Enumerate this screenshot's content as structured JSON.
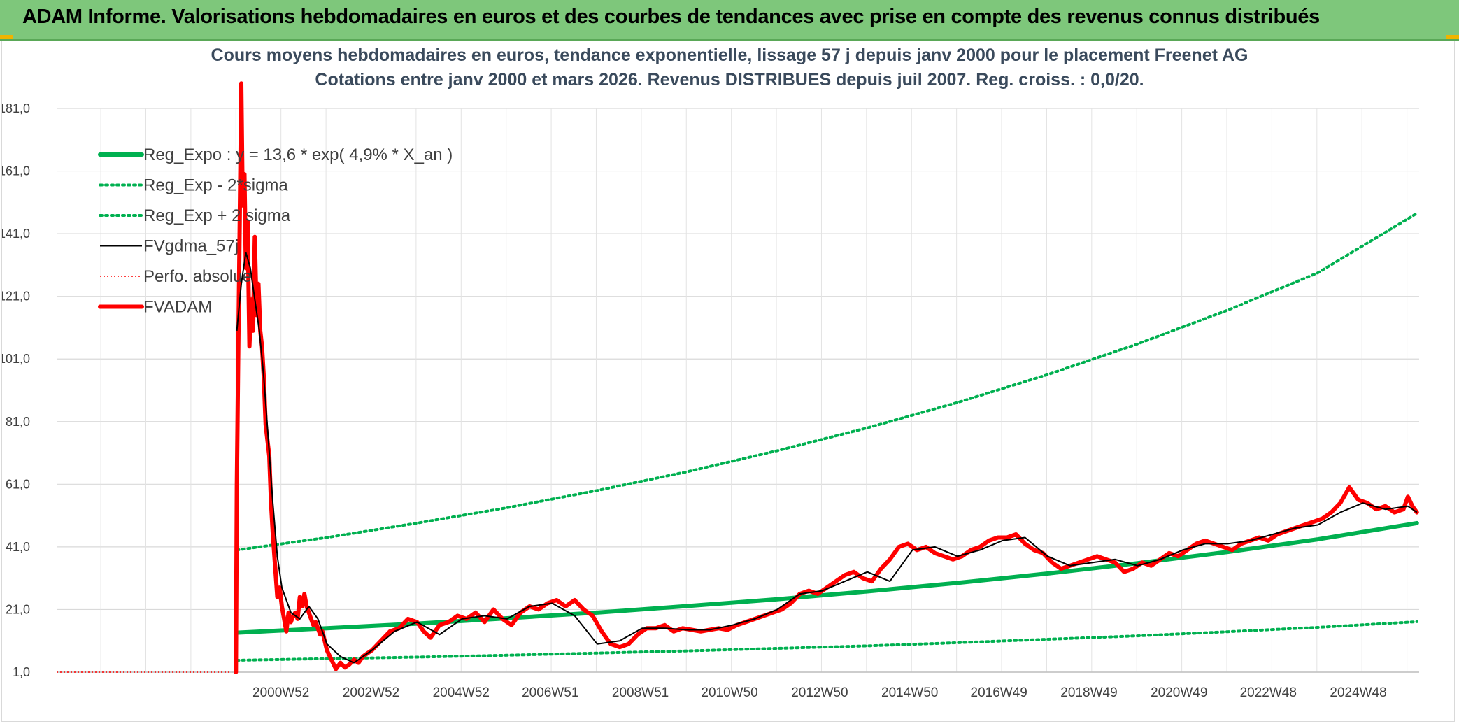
{
  "banner": {
    "title": "ADAM Informe. Valorisations hebdomadaires en euros et des courbes de tendances avec prise en compte des revenus connus distribués"
  },
  "colors": {
    "banner_bg": "#7ec77b",
    "green": "#00b050",
    "red": "#ff0000",
    "black": "#000000",
    "grid": "#d9d9d9"
  },
  "chart_data": {
    "type": "line",
    "title_lines": [
      "Cours moyens hebdomadaires en euros, tendance exponentielle, lissage 57 j depuis janv 2000 pour le placement Freenet AG",
      "Cotations entre janv 2000 et mars 2026. Revenus DISTRIBUES depuis juil 2007. Reg. croiss. : 0,0/20."
    ],
    "y_ticks": [
      "1,0",
      "21,0",
      "41,0",
      "61,0",
      "81,0",
      "101,0",
      "121,0",
      "141,0",
      "161,0",
      "181,0"
    ],
    "ylim": [
      1,
      181
    ],
    "x_ticks": [
      {
        "label": "2000W52",
        "x": 2000.98
      },
      {
        "label": "2002W52",
        "x": 2002.98
      },
      {
        "label": "2004W52",
        "x": 2004.98
      },
      {
        "label": "2006W51",
        "x": 2006.96
      },
      {
        "label": "2008W51",
        "x": 2008.96
      },
      {
        "label": "2010W50",
        "x": 2010.94
      },
      {
        "label": "2012W50",
        "x": 2012.94
      },
      {
        "label": "2014W50",
        "x": 2014.94
      },
      {
        "label": "2016W49",
        "x": 2016.92
      },
      {
        "label": "2018W49",
        "x": 2018.92
      },
      {
        "label": "2020W49",
        "x": 2020.92
      },
      {
        "label": "2022W48",
        "x": 2022.9
      },
      {
        "label": "2024W48",
        "x": 2024.9
      }
    ],
    "xlim": [
      1996.0,
      2026.25
    ],
    "legend": {
      "position": "top-left",
      "items": [
        {
          "label": "Reg_Expo : y = 13,6 * exp( 4,9% *  X_an )",
          "style": "solid-thick",
          "color": "#00b050"
        },
        {
          "label": "Reg_Exp - 2*sigma",
          "style": "dotted",
          "color": "#00b050"
        },
        {
          "label": "Reg_Exp + 2 sigma",
          "style": "dotted",
          "color": "#00b050"
        },
        {
          "label": "FVgdma_57j",
          "style": "solid-thin",
          "color": "#000000"
        },
        {
          "label": "Perfo. absolue",
          "style": "dotted-thin",
          "color": "#ff0000"
        },
        {
          "label": "FVADAM",
          "style": "solid-thick",
          "color": "#ff0000"
        }
      ]
    },
    "series": [
      {
        "name": "Reg_Expo : y = 13,6 * exp( 4,9% *  X_an )",
        "color": "#00b050",
        "style": "solid-thick",
        "x": [
          2000.0,
          2002.0,
          2004.0,
          2006.0,
          2008.0,
          2010.0,
          2012.0,
          2014.0,
          2016.0,
          2018.0,
          2020.0,
          2022.0,
          2024.0,
          2026.2
        ],
        "y": [
          13.6,
          15.0,
          16.5,
          18.2,
          20.0,
          22.1,
          24.3,
          26.8,
          29.5,
          32.5,
          35.8,
          39.4,
          43.4,
          48.6
        ]
      },
      {
        "name": "Reg_Exp - 2*sigma",
        "color": "#00b050",
        "style": "dotted",
        "x": [
          2000.0,
          2002.0,
          2004.0,
          2006.0,
          2008.0,
          2010.0,
          2012.0,
          2014.0,
          2016.0,
          2018.0,
          2020.0,
          2022.0,
          2024.0,
          2026.2
        ],
        "y": [
          4.8,
          5.3,
          5.8,
          6.4,
          7.1,
          7.8,
          8.6,
          9.4,
          10.4,
          11.5,
          12.6,
          13.9,
          15.3,
          17.1
        ]
      },
      {
        "name": "Reg_Exp + 2 sigma",
        "color": "#00b050",
        "style": "dotted",
        "x": [
          2000.0,
          2002.0,
          2004.0,
          2006.0,
          2008.0,
          2010.0,
          2012.0,
          2014.0,
          2016.0,
          2018.0,
          2020.0,
          2022.0,
          2024.0,
          2026.2
        ],
        "y": [
          40.0,
          44.0,
          48.6,
          53.5,
          59.0,
          65.0,
          71.7,
          79.0,
          87.1,
          96.0,
          105.8,
          116.6,
          128.5,
          147.5
        ]
      },
      {
        "name": "FVgdma_57j",
        "color": "#000000",
        "style": "solid-thin",
        "x": [
          2000.0,
          2000.1,
          2000.2,
          2000.3,
          2000.4,
          2000.5,
          2000.6,
          2000.7,
          2000.8,
          2000.9,
          2001.0,
          2001.2,
          2001.4,
          2001.6,
          2001.8,
          2002.0,
          2002.3,
          2002.6,
          2003.0,
          2003.5,
          2004.0,
          2004.5,
          2005.0,
          2005.5,
          2006.0,
          2006.5,
          2007.0,
          2007.5,
          2008.0,
          2008.5,
          2009.0,
          2009.5,
          2010.0,
          2010.5,
          2011.0,
          2011.5,
          2012.0,
          2012.5,
          2013.0,
          2013.5,
          2014.0,
          2014.5,
          2015.0,
          2015.5,
          2016.0,
          2016.5,
          2017.0,
          2017.5,
          2018.0,
          2018.5,
          2019.0,
          2019.5,
          2020.0,
          2020.5,
          2021.0,
          2021.5,
          2022.0,
          2022.5,
          2023.0,
          2023.5,
          2024.0,
          2024.5,
          2025.0,
          2025.5,
          2026.0,
          2026.2
        ],
        "y": [
          110.0,
          125.0,
          135.0,
          130.0,
          120.0,
          110.0,
          95.0,
          75.0,
          55.0,
          38.0,
          28.0,
          20.0,
          18.0,
          22.0,
          18.0,
          10.0,
          6.0,
          4.0,
          8.0,
          14.0,
          17.0,
          13.0,
          18.0,
          19.0,
          18.0,
          22.0,
          23.0,
          19.0,
          10.0,
          11.0,
          15.0,
          15.0,
          14.5,
          14.5,
          16.0,
          18.0,
          21.0,
          26.0,
          27.0,
          30.0,
          33.0,
          30.0,
          40.0,
          41.0,
          38.0,
          40.0,
          43.0,
          44.0,
          38.0,
          35.0,
          36.0,
          37.0,
          35.0,
          37.0,
          40.0,
          42.0,
          42.0,
          43.0,
          45.0,
          47.0,
          48.0,
          52.0,
          55.0,
          53.0,
          54.0,
          52.0
        ]
      },
      {
        "name": "Perfo. absolue",
        "color": "#ff0000",
        "style": "dotted-thin",
        "x": [
          1996.0,
          1999.9
        ],
        "y": [
          1.0,
          1.0
        ]
      },
      {
        "name": "FVADAM",
        "color": "#ff0000",
        "style": "solid-thick",
        "x": [
          1999.98,
          2000.0,
          2000.03,
          2000.06,
          2000.1,
          2000.13,
          2000.17,
          2000.2,
          2000.24,
          2000.28,
          2000.32,
          2000.36,
          2000.4,
          2000.44,
          2000.48,
          2000.52,
          2000.56,
          2000.6,
          2000.64,
          2000.68,
          2000.72,
          2000.76,
          2000.8,
          2000.85,
          2000.9,
          2000.95,
          2001.0,
          2001.05,
          2001.1,
          2001.15,
          2001.2,
          2001.25,
          2001.3,
          2001.35,
          2001.4,
          2001.45,
          2001.5,
          2001.55,
          2001.6,
          2001.65,
          2001.7,
          2001.75,
          2001.8,
          2001.85,
          2001.9,
          2001.95,
          2002.0,
          2002.1,
          2002.2,
          2002.3,
          2002.4,
          2002.5,
          2002.6,
          2002.7,
          2002.8,
          2002.9,
          2003.0,
          2003.2,
          2003.4,
          2003.6,
          2003.8,
          2004.0,
          2004.15,
          2004.3,
          2004.5,
          2004.7,
          2004.9,
          2005.1,
          2005.3,
          2005.5,
          2005.7,
          2005.9,
          2006.1,
          2006.3,
          2006.5,
          2006.7,
          2006.9,
          2007.1,
          2007.3,
          2007.5,
          2007.7,
          2007.9,
          2008.1,
          2008.3,
          2008.5,
          2008.7,
          2008.9,
          2009.1,
          2009.3,
          2009.5,
          2009.7,
          2009.9,
          2010.1,
          2010.3,
          2010.5,
          2010.7,
          2010.9,
          2011.1,
          2011.3,
          2011.5,
          2011.7,
          2011.9,
          2012.1,
          2012.3,
          2012.5,
          2012.7,
          2012.9,
          2013.1,
          2013.3,
          2013.5,
          2013.7,
          2013.9,
          2014.1,
          2014.3,
          2014.5,
          2014.7,
          2014.9,
          2015.1,
          2015.3,
          2015.5,
          2015.7,
          2015.9,
          2016.1,
          2016.3,
          2016.5,
          2016.7,
          2016.9,
          2017.1,
          2017.3,
          2017.5,
          2017.7,
          2017.9,
          2018.1,
          2018.3,
          2018.5,
          2018.7,
          2018.9,
          2019.1,
          2019.3,
          2019.5,
          2019.7,
          2019.9,
          2020.1,
          2020.3,
          2020.5,
          2020.7,
          2020.9,
          2021.1,
          2021.3,
          2021.5,
          2021.7,
          2021.9,
          2022.1,
          2022.3,
          2022.5,
          2022.7,
          2022.9,
          2023.1,
          2023.3,
          2023.5,
          2023.7,
          2023.9,
          2024.1,
          2024.3,
          2024.5,
          2024.7,
          2024.9,
          2025.1,
          2025.3,
          2025.5,
          2025.7,
          2025.9,
          2026.0,
          2026.1,
          2026.2
        ],
        "y": [
          1.0,
          60.0,
          100.0,
          140.0,
          189.0,
          150.0,
          160.0,
          130.0,
          145.0,
          105.0,
          120.0,
          110.0,
          140.0,
          115.0,
          125.0,
          110.0,
          105.0,
          95.0,
          80.0,
          75.0,
          70.0,
          55.0,
          45.0,
          35.0,
          25.0,
          28.0,
          22.0,
          18.0,
          14.0,
          20.0,
          17.0,
          19.0,
          20.0,
          18.0,
          25.0,
          22.0,
          26.0,
          22.0,
          20.0,
          18.0,
          16.0,
          17.0,
          15.0,
          13.0,
          14.0,
          11.0,
          8.0,
          5.0,
          2.0,
          4.0,
          2.5,
          3.5,
          5.0,
          4.0,
          6.0,
          7.0,
          8.0,
          11.0,
          14.0,
          15.0,
          18.0,
          17.0,
          14.0,
          12.0,
          16.0,
          17.0,
          19.0,
          18.0,
          20.0,
          17.0,
          21.0,
          18.0,
          16.0,
          20.0,
          22.0,
          21.0,
          23.0,
          24.0,
          22.0,
          24.0,
          21.0,
          19.0,
          14.0,
          10.0,
          9.0,
          10.0,
          13.0,
          15.0,
          15.0,
          16.0,
          14.0,
          15.0,
          14.5,
          14.0,
          14.5,
          15.0,
          14.5,
          16.0,
          17.0,
          18.0,
          19.0,
          20.0,
          21.0,
          23.0,
          26.0,
          27.0,
          26.0,
          28.0,
          30.0,
          32.0,
          33.0,
          31.0,
          30.0,
          34.0,
          37.0,
          41.0,
          42.0,
          40.0,
          41.0,
          39.0,
          38.0,
          37.0,
          38.0,
          40.0,
          41.0,
          43.0,
          44.0,
          44.0,
          45.0,
          42.0,
          40.0,
          39.0,
          36.0,
          34.0,
          35.0,
          36.0,
          37.0,
          38.0,
          37.0,
          36.0,
          33.0,
          34.0,
          36.0,
          35.0,
          37.0,
          39.0,
          38.0,
          40.0,
          42.0,
          43.0,
          42.0,
          41.0,
          40.0,
          42.0,
          43.0,
          44.0,
          43.0,
          45.0,
          46.0,
          47.0,
          48.0,
          49.0,
          50.0,
          52.0,
          55.0,
          60.0,
          56.0,
          55.0,
          53.0,
          54.0,
          52.0,
          53.0,
          57.0,
          54.0,
          52.0
        ]
      }
    ]
  }
}
